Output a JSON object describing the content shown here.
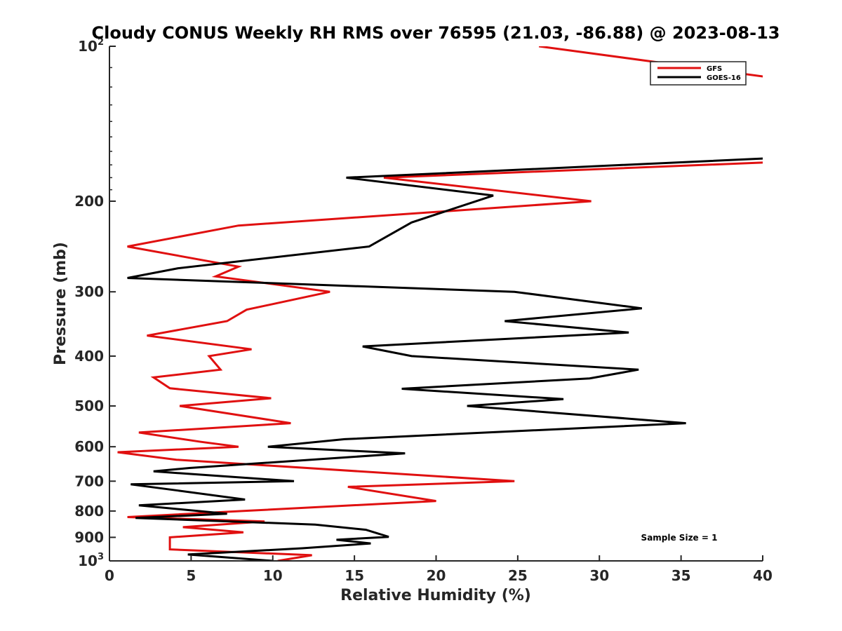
{
  "chart_data": {
    "type": "line",
    "title": "Cloudy CONUS Weekly RH RMS over 76595 (21.03, -86.88) @ 2023-08-13",
    "xlabel": "Relative Humidity (%)",
    "ylabel": "Pressure (mb)",
    "xlim": [
      0,
      40
    ],
    "ylim": [
      100,
      1000
    ],
    "yscale": "log",
    "yreversed": true,
    "x_ticks": [
      "0",
      "5",
      "10",
      "15",
      "20",
      "25",
      "30",
      "35",
      "40"
    ],
    "y_ticks": [
      {
        "value": 100,
        "base": "10",
        "exp": "2"
      },
      {
        "value": 200,
        "label": "200"
      },
      {
        "value": 300,
        "label": "300"
      },
      {
        "value": 400,
        "label": "400"
      },
      {
        "value": 500,
        "label": "500"
      },
      {
        "value": 600,
        "label": "600"
      },
      {
        "value": 700,
        "label": "700"
      },
      {
        "value": 800,
        "label": "800"
      },
      {
        "value": 900,
        "label": "900"
      },
      {
        "value": 1000,
        "base": "10",
        "exp": "3"
      }
    ],
    "legend_position": "top-right",
    "series": [
      {
        "name": "GFS",
        "color": "#e01010",
        "points": [
          [
            26.3,
            100
          ],
          [
            40.5,
            115
          ],
          [
            40.5,
            168
          ],
          [
            16.8,
            180
          ],
          [
            29.5,
            200
          ],
          [
            7.9,
            223
          ],
          [
            1.1,
            245
          ],
          [
            7.9,
            268
          ],
          [
            6.5,
            280
          ],
          [
            13.5,
            300
          ],
          [
            8.4,
            325
          ],
          [
            7.2,
            342
          ],
          [
            2.3,
            365
          ],
          [
            8.7,
            388
          ],
          [
            6.1,
            400
          ],
          [
            6.8,
            425
          ],
          [
            2.7,
            440
          ],
          [
            3.7,
            462
          ],
          [
            9.9,
            483
          ],
          [
            4.3,
            500
          ],
          [
            11.1,
            540
          ],
          [
            1.8,
            563
          ],
          [
            5.6,
            587
          ],
          [
            7.9,
            600
          ],
          [
            0.5,
            615
          ],
          [
            4.1,
            636
          ],
          [
            24.8,
            700
          ],
          [
            14.6,
            718
          ],
          [
            20.0,
            765
          ],
          [
            8.1,
            800
          ],
          [
            1.1,
            822
          ],
          [
            9.5,
            838
          ],
          [
            4.5,
            860
          ],
          [
            8.2,
            880
          ],
          [
            3.7,
            900
          ],
          [
            3.7,
            950
          ],
          [
            12.4,
            975
          ],
          [
            10.3,
            1000
          ]
        ]
      },
      {
        "name": "GOES-16",
        "color": "#000000",
        "points": [
          [
            40.5,
            165
          ],
          [
            14.5,
            180
          ],
          [
            23.5,
            195
          ],
          [
            18.5,
            220
          ],
          [
            15.9,
            245
          ],
          [
            4.2,
            270
          ],
          [
            1.1,
            282
          ],
          [
            24.8,
            300
          ],
          [
            32.6,
            323
          ],
          [
            24.2,
            342
          ],
          [
            31.8,
            360
          ],
          [
            15.5,
            383
          ],
          [
            18.5,
            400
          ],
          [
            32.4,
            425
          ],
          [
            29.4,
            442
          ],
          [
            17.9,
            463
          ],
          [
            27.8,
            485
          ],
          [
            21.9,
            500
          ],
          [
            35.3,
            540
          ],
          [
            14.4,
            580
          ],
          [
            9.7,
            600
          ],
          [
            18.1,
            618
          ],
          [
            4.9,
            660
          ],
          [
            2.7,
            670
          ],
          [
            11.3,
            700
          ],
          [
            1.3,
            710
          ],
          [
            4.2,
            730
          ],
          [
            8.3,
            760
          ],
          [
            1.8,
            780
          ],
          [
            7.2,
            810
          ],
          [
            1.6,
            825
          ],
          [
            12.6,
            850
          ],
          [
            15.7,
            870
          ],
          [
            17.1,
            898
          ],
          [
            13.9,
            910
          ],
          [
            16.0,
            925
          ],
          [
            11.8,
            945
          ],
          [
            4.8,
            972
          ],
          [
            10.0,
            1000
          ]
        ]
      }
    ],
    "annotations": [
      "Sample Size = 1"
    ]
  }
}
